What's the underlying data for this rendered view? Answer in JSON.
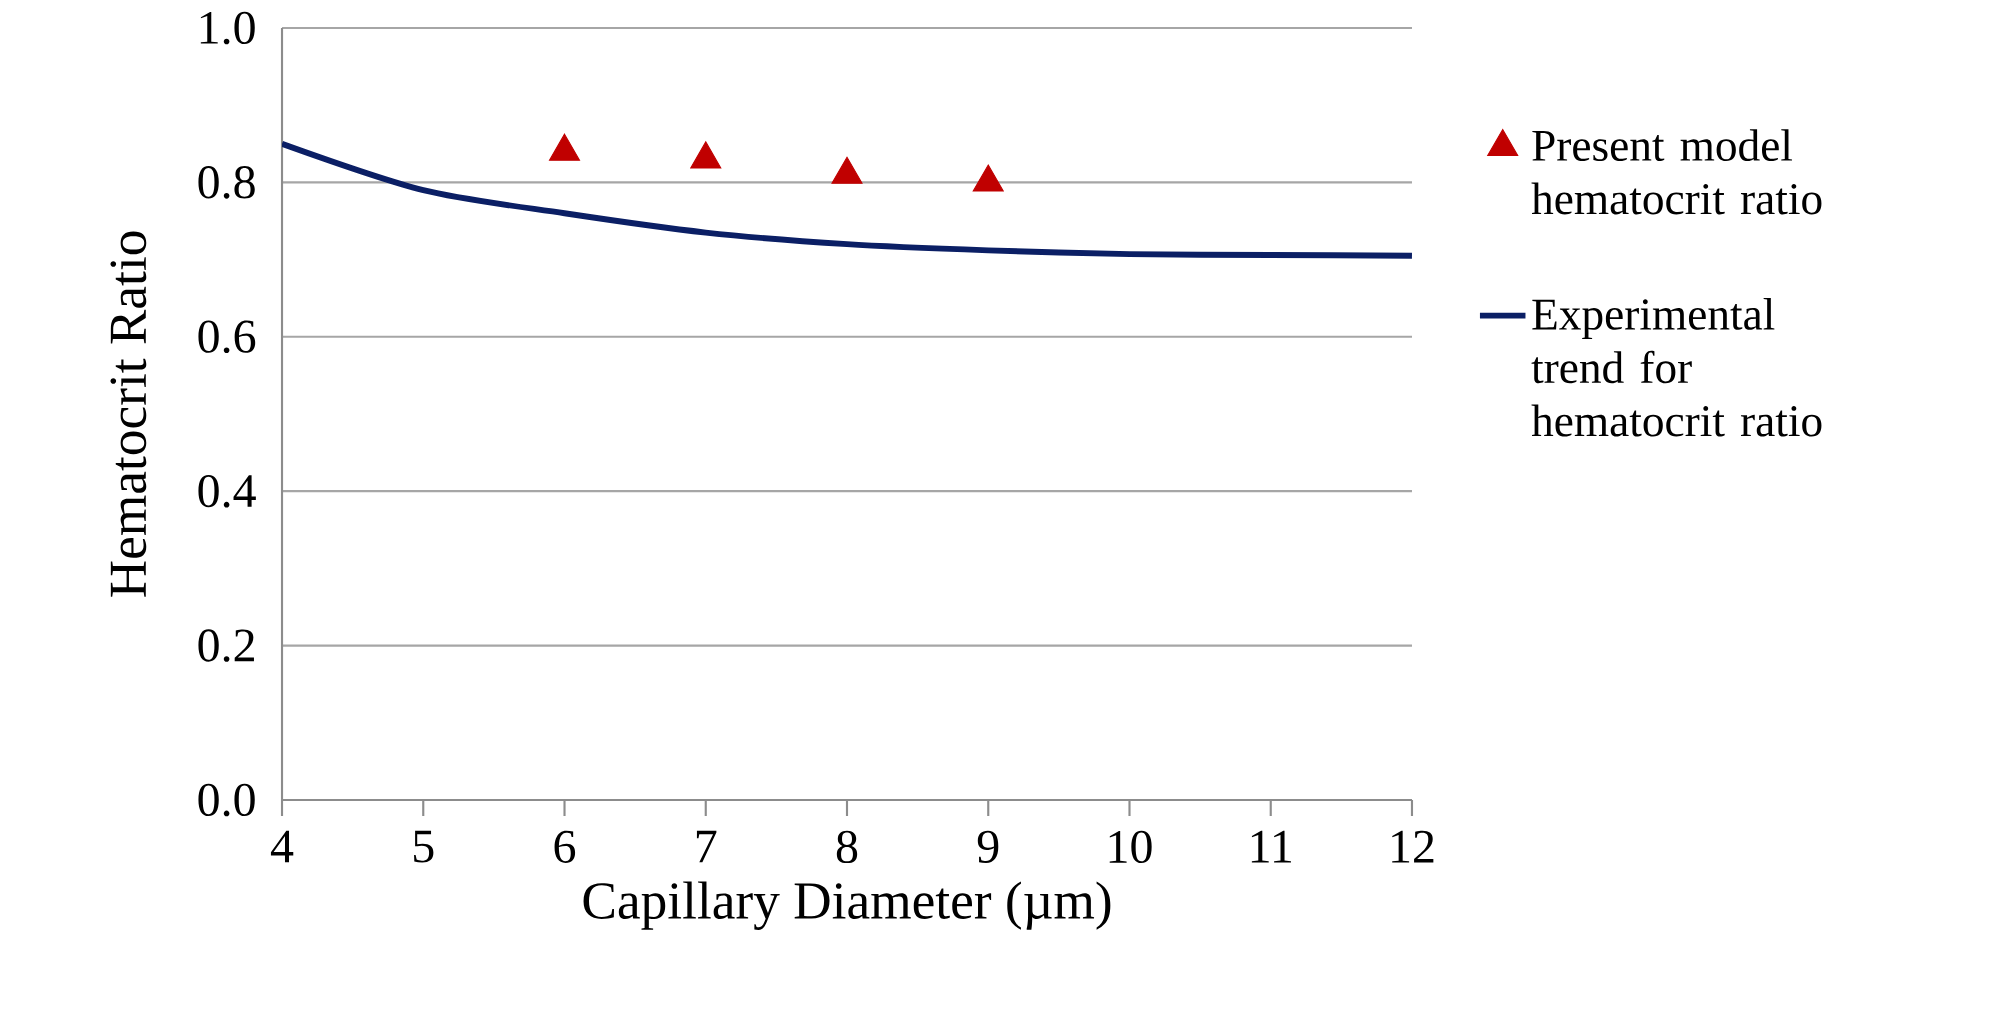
{
  "chart_data": {
    "type": "scatter",
    "xlabel": "Capillary Diameter (µm)",
    "ylabel": "Hematocrit  Ratio",
    "xlim": [
      4,
      12
    ],
    "xticks": [
      4,
      5,
      6,
      7,
      8,
      9,
      10,
      11,
      12
    ],
    "ylim": [
      0,
      1
    ],
    "yticks": [
      {
        "value": 0,
        "label": "0.0"
      },
      {
        "value": 0.2,
        "label": "0.2"
      },
      {
        "value": 0.4,
        "label": "0.4"
      },
      {
        "value": 0.6,
        "label": "0.6"
      },
      {
        "value": 0.8,
        "label": "0.8"
      },
      {
        "value": 1,
        "label": "1.0"
      }
    ],
    "grid": "y",
    "legend": "right",
    "series": [
      {
        "name": "Present model hematocrit ratio",
        "marker": "triangle",
        "color": "#c00000",
        "x": [
          6,
          7,
          8,
          9
        ],
        "values": [
          0.84,
          0.83,
          0.81,
          0.8
        ]
      },
      {
        "name": "Experimental trend for hematocrit ratio",
        "type": "line",
        "marker": "none",
        "line_style": "solid",
        "color": "#0b1f65",
        "x": [
          4,
          5,
          6,
          7,
          8,
          9,
          10,
          11,
          12
        ],
        "values": [
          0.85,
          0.79,
          0.76,
          0.735,
          0.72,
          0.712,
          0.707,
          0.706,
          0.705
        ]
      }
    ]
  }
}
